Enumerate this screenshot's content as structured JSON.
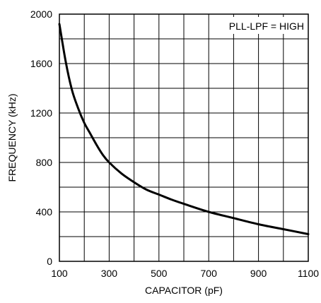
{
  "chart_data": {
    "type": "line",
    "xlabel": "CAPACITOR (pF)",
    "ylabel": "FREQUENCY (kHz)",
    "xlim": [
      100,
      1100
    ],
    "ylim": [
      0,
      2000
    ],
    "x_ticks": [
      100,
      300,
      500,
      700,
      900,
      1100
    ],
    "y_ticks": [
      0,
      400,
      800,
      1200,
      1600,
      2000
    ],
    "x_tick_labels": [
      "100",
      "300",
      "500",
      "700",
      "900",
      "1100"
    ],
    "y_tick_labels": [
      "0",
      "400",
      "800",
      "1200",
      "1600",
      "2000"
    ],
    "grid": true,
    "annotation": "PLL-LPF = HIGH",
    "series": [
      {
        "x": [
          100,
          125,
          150,
          175,
          200,
          225,
          250,
          275,
          300,
          350,
          400,
          450,
          500,
          550,
          600,
          700,
          800,
          900,
          1000,
          1100
        ],
        "y": [
          1920,
          1620,
          1390,
          1240,
          1120,
          1030,
          940,
          860,
          800,
          710,
          640,
          580,
          540,
          500,
          465,
          400,
          350,
          300,
          260,
          220
        ]
      }
    ]
  }
}
